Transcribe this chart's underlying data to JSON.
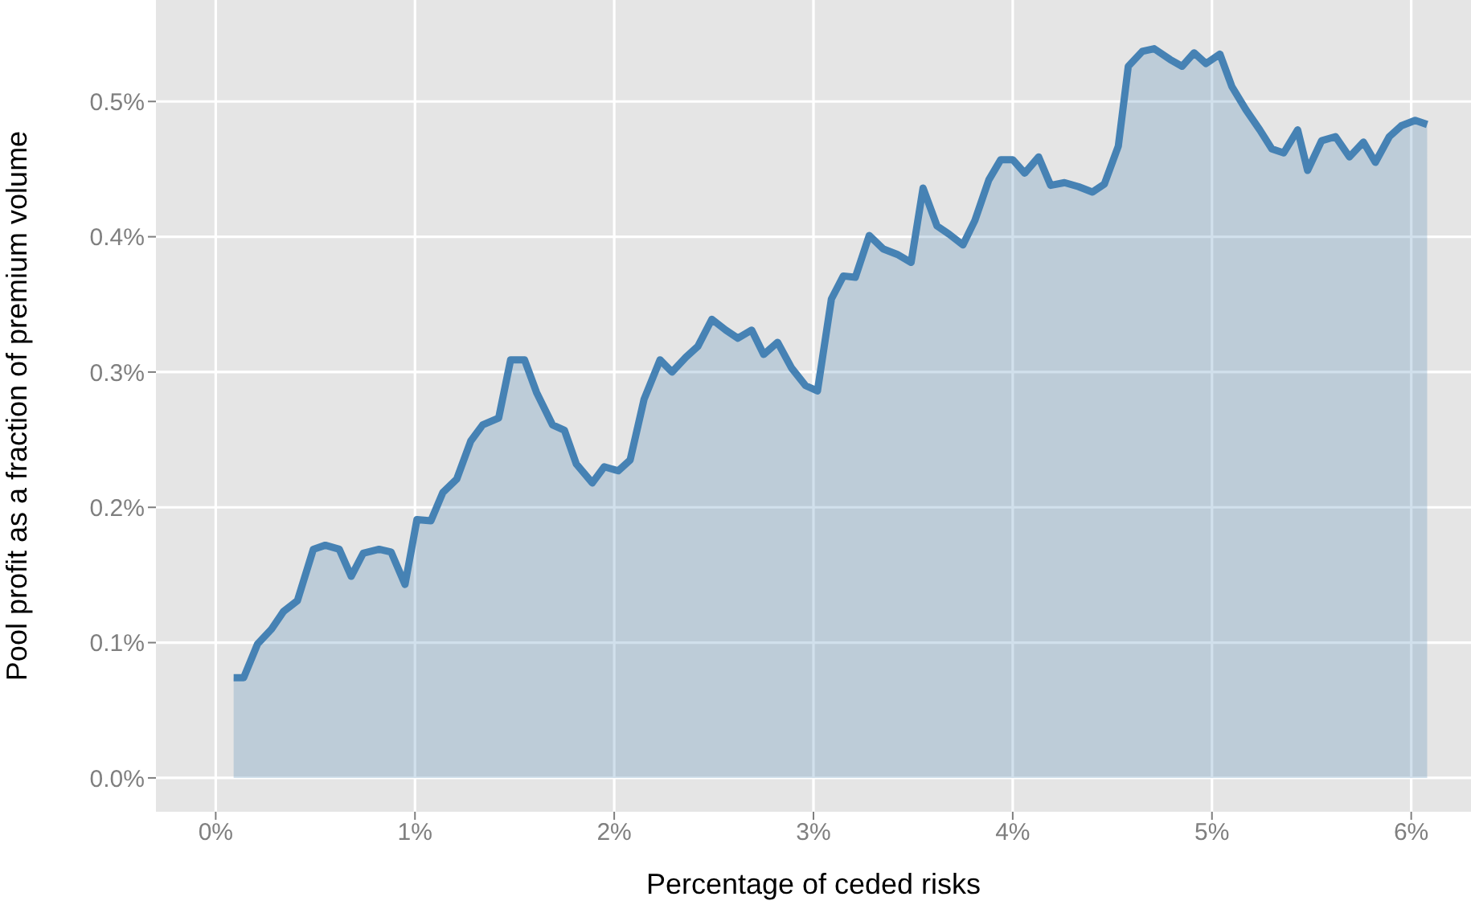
{
  "chart_data": {
    "type": "area",
    "xlabel": "Percentage of ceded risks",
    "ylabel": "Pool profit as a fraction of premium volume",
    "x": [
      0.09,
      0.14,
      0.21,
      0.28,
      0.34,
      0.41,
      0.49,
      0.55,
      0.62,
      0.68,
      0.74,
      0.82,
      0.88,
      0.95,
      1.01,
      1.08,
      1.14,
      1.21,
      1.28,
      1.34,
      1.42,
      1.48,
      1.55,
      1.61,
      1.69,
      1.75,
      1.81,
      1.89,
      1.95,
      2.02,
      2.08,
      2.15,
      2.23,
      2.29,
      2.36,
      2.42,
      2.49,
      2.56,
      2.62,
      2.69,
      2.75,
      2.82,
      2.89,
      2.96,
      3.02,
      3.09,
      3.15,
      3.21,
      3.28,
      3.35,
      3.42,
      3.49,
      3.55,
      3.62,
      3.68,
      3.75,
      3.81,
      3.88,
      3.94,
      4.0,
      4.06,
      4.13,
      4.19,
      4.26,
      4.33,
      4.4,
      4.46,
      4.53,
      4.58,
      4.65,
      4.71,
      4.79,
      4.85,
      4.91,
      4.97,
      5.04,
      5.1,
      5.17,
      5.24,
      5.3,
      5.36,
      5.43,
      5.48,
      5.55,
      5.62,
      5.69,
      5.76,
      5.82,
      5.89,
      5.95,
      6.02,
      6.08
    ],
    "series": [
      {
        "color": "#4682b4",
        "values": [
          0.074,
          0.074,
          0.099,
          0.11,
          0.123,
          0.131,
          0.169,
          0.172,
          0.169,
          0.149,
          0.166,
          0.169,
          0.167,
          0.143,
          0.191,
          0.19,
          0.211,
          0.221,
          0.249,
          0.261,
          0.266,
          0.309,
          0.309,
          0.285,
          0.261,
          0.257,
          0.232,
          0.218,
          0.23,
          0.227,
          0.235,
          0.28,
          0.309,
          0.3,
          0.311,
          0.319,
          0.339,
          0.331,
          0.325,
          0.331,
          0.313,
          0.322,
          0.303,
          0.29,
          0.286,
          0.354,
          0.371,
          0.37,
          0.401,
          0.391,
          0.387,
          0.381,
          0.436,
          0.408,
          0.402,
          0.394,
          0.412,
          0.442,
          0.457,
          0.457,
          0.447,
          0.459,
          0.438,
          0.44,
          0.437,
          0.433,
          0.439,
          0.467,
          0.526,
          0.537,
          0.539,
          0.531,
          0.526,
          0.536,
          0.528,
          0.535,
          0.511,
          0.494,
          0.479,
          0.465,
          0.462,
          0.479,
          0.449,
          0.471,
          0.474,
          0.459,
          0.47,
          0.455,
          0.474,
          0.482,
          0.486,
          0.483
        ]
      }
    ],
    "xlim": [
      -0.3,
      6.3
    ],
    "ylim": [
      -0.025,
      0.575
    ],
    "xticks": [
      {
        "value": 0,
        "label": "0%"
      },
      {
        "value": 1,
        "label": "1%"
      },
      {
        "value": 2,
        "label": "2%"
      },
      {
        "value": 3,
        "label": "3%"
      },
      {
        "value": 4,
        "label": "4%"
      },
      {
        "value": 5,
        "label": "5%"
      },
      {
        "value": 6,
        "label": "6%"
      }
    ],
    "yticks": [
      {
        "value": 0,
        "label": "0.0%"
      },
      {
        "value": 0.1,
        "label": "0.1%"
      },
      {
        "value": 0.2,
        "label": "0.2%"
      },
      {
        "value": 0.3,
        "label": "0.3%"
      },
      {
        "value": 0.4,
        "label": "0.4%"
      },
      {
        "value": 0.5,
        "label": "0.5%"
      }
    ],
    "grid": true,
    "legend": false,
    "marker": "none",
    "line_style": "solid"
  }
}
